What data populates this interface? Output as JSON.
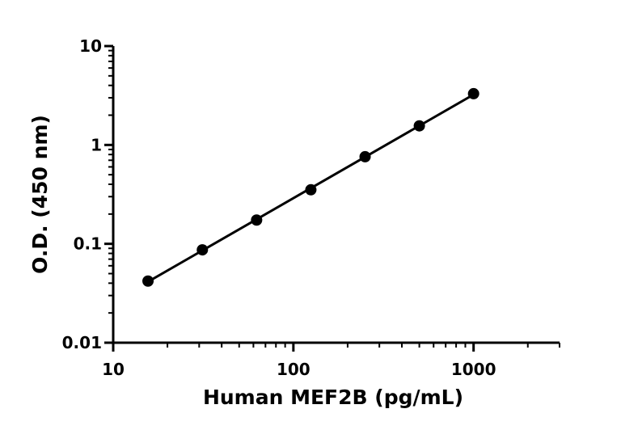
{
  "chart_data": {
    "type": "scatter",
    "xlabel": "Human MEF2B (pg/mL)",
    "ylabel": "O.D. (450 nm)",
    "xscale": "log",
    "yscale": "log",
    "xlim": [
      10,
      3000
    ],
    "ylim": [
      0.01,
      10
    ],
    "xticks": [
      {
        "value": 10,
        "label": "10"
      },
      {
        "value": 100,
        "label": "100"
      },
      {
        "value": 1000,
        "label": "1000"
      }
    ],
    "yticks": [
      {
        "value": 0.01,
        "label": "0.01"
      },
      {
        "value": 0.1,
        "label": "0.1"
      },
      {
        "value": 1,
        "label": "1"
      },
      {
        "value": 10,
        "label": "10"
      }
    ],
    "grid": false,
    "legend": "none",
    "series": [
      {
        "x": [
          15.6,
          31.25,
          62.5,
          125,
          250,
          500,
          1000
        ],
        "y": [
          0.042,
          0.087,
          0.174,
          0.352,
          0.76,
          1.56,
          3.3
        ],
        "color": "#000000",
        "marker": "circle",
        "fit_line": true
      }
    ]
  }
}
